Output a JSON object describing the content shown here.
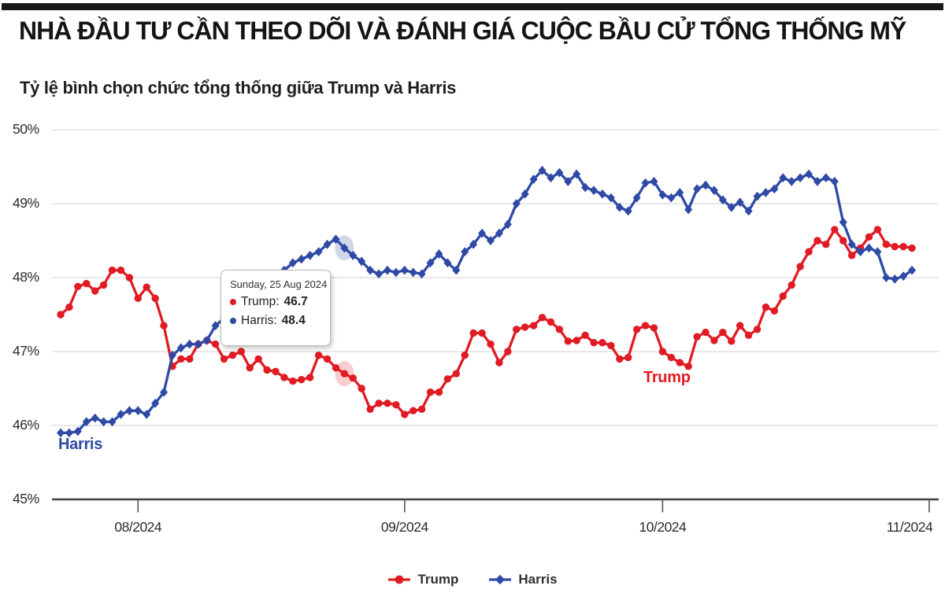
{
  "header": {
    "title": "NHÀ ĐẦU TƯ CẦN THEO DÕI VÀ ĐÁNH GIÁ CUỘC BẦU CỬ TỔNG THỐNG MỸ"
  },
  "chart": {
    "title": "Tỷ lệ bình chọn chức tổng thống giữa Trump và Harris",
    "series_labels": {
      "trump": "Trump",
      "harris": "Harris"
    }
  },
  "tooltip": {
    "date": "Sunday, 25 Aug 2024",
    "rows": [
      {
        "label": "Trump:",
        "value": "46.7",
        "color": "#e11b23"
      },
      {
        "label": "Harris:",
        "value": "48.4",
        "color": "#2e4aa5"
      }
    ]
  },
  "legend": {
    "items": [
      {
        "label": "Trump",
        "color": "#e11b23",
        "marker": "circle"
      },
      {
        "label": "Harris",
        "color": "#2e4aa5",
        "marker": "diamond"
      }
    ]
  },
  "chart_data": {
    "type": "line",
    "title": "Tỷ lệ bình chọn chức tổng thống giữa Trump và Harris",
    "x_start_date": "2024-07-23",
    "x_frequency": "daily",
    "ylim": [
      45,
      50
    ],
    "grid": true,
    "legend_position": "bottom",
    "y_ticks": [
      {
        "value": 50,
        "label": "50%"
      },
      {
        "value": 49,
        "label": "49%"
      },
      {
        "value": 48,
        "label": "48%"
      },
      {
        "value": 47,
        "label": "47%"
      },
      {
        "value": 46,
        "label": "46%"
      },
      {
        "value": 45,
        "label": "45%"
      }
    ],
    "x_ticks": [
      {
        "day": 9,
        "label": "08/2024"
      },
      {
        "day": 40,
        "label": "09/2024"
      },
      {
        "day": 70,
        "label": "10/2024"
      },
      {
        "day": 101,
        "label": "11/2024"
      }
    ],
    "highlight": {
      "index": 33,
      "date": "Sunday, 25 Aug 2024",
      "trump": 46.7,
      "harris": 48.4
    },
    "series": [
      {
        "name": "Trump",
        "color": "#e11b23",
        "marker": "circle",
        "values": [
          47.5,
          47.6,
          47.88,
          47.92,
          47.82,
          47.9,
          48.1,
          48.1,
          48.0,
          47.72,
          47.87,
          47.72,
          47.35,
          46.8,
          46.9,
          46.9,
          47.1,
          47.15,
          47.1,
          46.9,
          46.95,
          47.0,
          46.78,
          46.9,
          46.75,
          46.73,
          46.65,
          46.6,
          46.62,
          46.65,
          46.95,
          46.9,
          46.78,
          46.7,
          46.64,
          46.5,
          46.22,
          46.3,
          46.3,
          46.28,
          46.15,
          46.2,
          46.22,
          46.45,
          46.45,
          46.63,
          46.7,
          46.95,
          47.25,
          47.25,
          47.1,
          46.85,
          47.0,
          47.3,
          47.33,
          47.35,
          47.46,
          47.4,
          47.3,
          47.14,
          47.15,
          47.22,
          47.12,
          47.12,
          47.08,
          46.9,
          46.92,
          47.3,
          47.35,
          47.32,
          47.0,
          46.92,
          46.85,
          46.8,
          47.2,
          47.26,
          47.15,
          47.26,
          47.14,
          47.35,
          47.22,
          47.3,
          47.6,
          47.55,
          47.75,
          47.9,
          48.15,
          48.35,
          48.5,
          48.45,
          48.65,
          48.5,
          48.3,
          48.4,
          48.55,
          48.65,
          48.45,
          48.42,
          48.42,
          48.4
        ]
      },
      {
        "name": "Harris",
        "color": "#2e4aa5",
        "marker": "diamond",
        "values": [
          45.9,
          45.9,
          45.92,
          46.05,
          46.1,
          46.05,
          46.05,
          46.15,
          46.2,
          46.2,
          46.15,
          46.3,
          46.45,
          46.95,
          47.05,
          47.1,
          47.1,
          47.15,
          47.35,
          47.45,
          47.5,
          47.6,
          47.7,
          47.8,
          47.9,
          48.0,
          48.1,
          48.2,
          48.25,
          48.3,
          48.35,
          48.45,
          48.52,
          48.4,
          48.3,
          48.22,
          48.1,
          48.05,
          48.1,
          48.07,
          48.1,
          48.07,
          48.05,
          48.2,
          48.32,
          48.2,
          48.1,
          48.35,
          48.45,
          48.6,
          48.5,
          48.6,
          48.72,
          49.0,
          49.13,
          49.33,
          49.45,
          49.35,
          49.42,
          49.3,
          49.4,
          49.22,
          49.18,
          49.13,
          49.08,
          48.95,
          48.9,
          49.08,
          49.28,
          49.3,
          49.12,
          49.08,
          49.15,
          48.92,
          49.2,
          49.25,
          49.18,
          49.05,
          48.95,
          49.02,
          48.9,
          49.1,
          49.15,
          49.2,
          49.35,
          49.3,
          49.35,
          49.4,
          49.3,
          49.35,
          49.3,
          48.75,
          48.45,
          48.35,
          48.4,
          48.35,
          48.0,
          47.98,
          48.02,
          48.1
        ]
      }
    ]
  }
}
